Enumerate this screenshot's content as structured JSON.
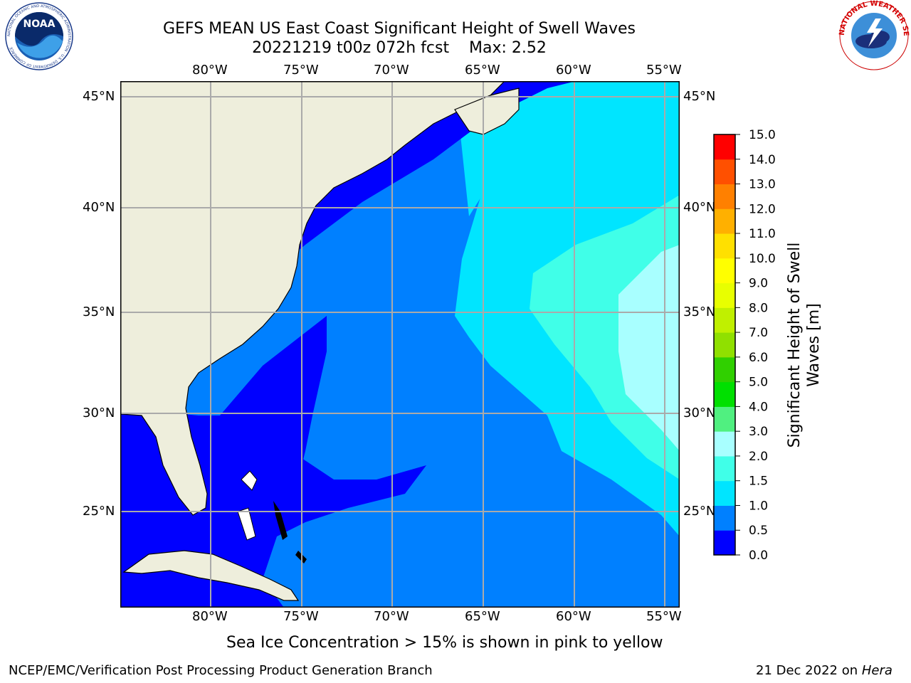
{
  "title": {
    "line1": "GEFS MEAN US East Coast Significant Height of Swell Waves",
    "line2": "20221219 t00z 072h fcst    Max: 2.52"
  },
  "logos": {
    "noaa_text": "NOAA",
    "noaa_ring": "NATIONAL OCEANIC AND ATMOSPHERIC ADMINISTRATION · U.S. DEPARTMENT OF COMMERCE",
    "nws_ring": "NATIONAL WEATHER SERVICE"
  },
  "axes": {
    "lon_ticks": [
      "80°W",
      "75°W",
      "70°W",
      "65°W",
      "60°W",
      "55°W"
    ],
    "lat_ticks": [
      "45°N",
      "40°N",
      "35°N",
      "30°N",
      "25°N"
    ]
  },
  "colorbar": {
    "label_line1": "Significant Height of Swell",
    "label_line2": "Waves [m]",
    "levels": [
      "0.0",
      "0.5",
      "1.0",
      "1.5",
      "2.0",
      "3.0",
      "4.0",
      "5.0",
      "6.0",
      "7.0",
      "8.0",
      "9.0",
      "10.0",
      "11.0",
      "12.0",
      "13.0",
      "14.0",
      "15.0"
    ],
    "colors": [
      "#0000ff",
      "#0080ff",
      "#00e5ff",
      "#40ffe8",
      "#a8ffff",
      "#50f080",
      "#00e000",
      "#30d000",
      "#90e000",
      "#c0f000",
      "#e8ff00",
      "#ffff00",
      "#ffe000",
      "#ffb000",
      "#ff8000",
      "#ff5000",
      "#ff0000"
    ]
  },
  "map_colors": {
    "land": "#eeeedc",
    "ocean_0_05": "#0000ff",
    "ocean_05_10": "#0080ff",
    "ocean_10_15": "#00e5ff",
    "ocean_15_20": "#40ffe8",
    "ocean_20_30": "#a8ffff"
  },
  "subtitle": "Sea Ice Concentration > 15% is shown in pink to yellow",
  "footer": {
    "left": "NCEP/EMC/Verification Post Processing Product Generation Branch",
    "date": "21 Dec 2022 on",
    "host": "Hera"
  }
}
